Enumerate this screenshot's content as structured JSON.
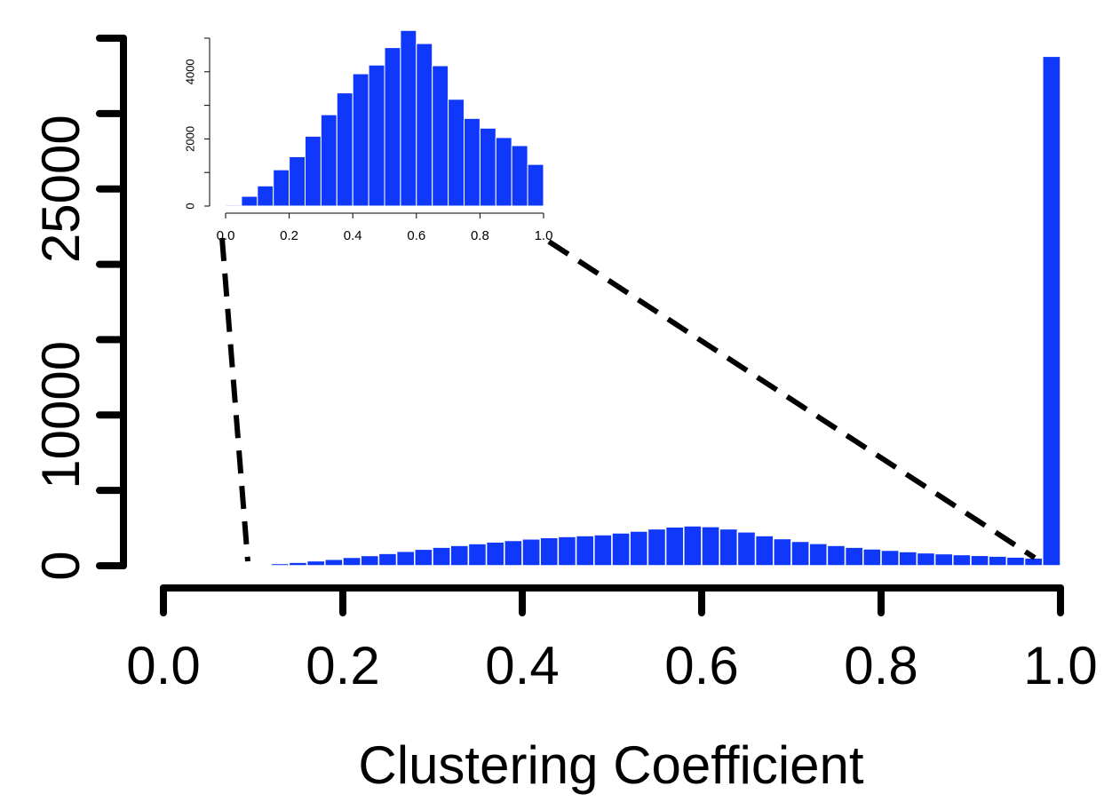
{
  "colors": {
    "bar": "#1038fa",
    "axis": "#000000",
    "bar_edge": "#ffffff"
  },
  "chart_data": [
    {
      "type": "bar",
      "role": "main-histogram",
      "title": "",
      "xlabel": "Clustering Coefficient",
      "ylabel": "",
      "xlim": [
        0.0,
        1.0
      ],
      "ylim": [
        0,
        35000
      ],
      "x_ticks": [
        0.0,
        0.2,
        0.4,
        0.6,
        0.8,
        1.0
      ],
      "x_tick_labels": [
        "0.0",
        "0.2",
        "0.4",
        "0.6",
        "0.8",
        "1.0"
      ],
      "y_ticks": [
        0,
        5000,
        10000,
        15000,
        20000,
        25000,
        30000,
        35000
      ],
      "y_tick_labels": [
        "0",
        "",
        "10000",
        "",
        "",
        "25000",
        "",
        ""
      ],
      "bin_starts": [
        0.1,
        0.12,
        0.14,
        0.16,
        0.18,
        0.2,
        0.22,
        0.24,
        0.26,
        0.28,
        0.3,
        0.32,
        0.34,
        0.36,
        0.38,
        0.4,
        0.42,
        0.44,
        0.46,
        0.48,
        0.5,
        0.52,
        0.54,
        0.56,
        0.58,
        0.6,
        0.62,
        0.64,
        0.66,
        0.68,
        0.7,
        0.72,
        0.74,
        0.76,
        0.78,
        0.8,
        0.82,
        0.84,
        0.86,
        0.88,
        0.9,
        0.92,
        0.94,
        0.96,
        0.98
      ],
      "bin_width": 0.02,
      "values": [
        80,
        150,
        230,
        330,
        430,
        560,
        680,
        820,
        960,
        1100,
        1230,
        1350,
        1470,
        1580,
        1680,
        1780,
        1870,
        1940,
        2000,
        2060,
        2180,
        2300,
        2450,
        2580,
        2650,
        2600,
        2450,
        2250,
        2000,
        1800,
        1620,
        1480,
        1350,
        1230,
        1120,
        1030,
        940,
        860,
        800,
        740,
        690,
        640,
        580,
        520,
        33800
      ]
    },
    {
      "type": "bar",
      "role": "inset-histogram",
      "title": "",
      "xlabel": "",
      "ylabel": "",
      "xlim": [
        0.0,
        1.0
      ],
      "ylim": [
        0,
        5000
      ],
      "x_ticks": [
        0.0,
        0.2,
        0.4,
        0.6,
        0.8,
        1.0
      ],
      "x_tick_labels": [
        "0.0",
        "0.2",
        "0.4",
        "0.6",
        "0.8",
        "1.0"
      ],
      "y_ticks": [
        0,
        1000,
        2000,
        3000,
        4000,
        5000
      ],
      "y_tick_labels": [
        "0",
        "",
        "2000",
        "",
        "4000",
        ""
      ],
      "bin_starts": [
        0.0,
        0.05,
        0.1,
        0.15,
        0.2,
        0.25,
        0.3,
        0.35,
        0.4,
        0.45,
        0.5,
        0.55,
        0.6,
        0.65,
        0.7,
        0.75,
        0.8,
        0.85,
        0.9,
        0.95
      ],
      "bin_width": 0.05,
      "values": [
        30,
        290,
        600,
        1080,
        1470,
        2080,
        2720,
        3370,
        3940,
        4200,
        4720,
        5230,
        4840,
        4180,
        3180,
        2610,
        2320,
        2040,
        1800,
        1240
      ]
    }
  ]
}
